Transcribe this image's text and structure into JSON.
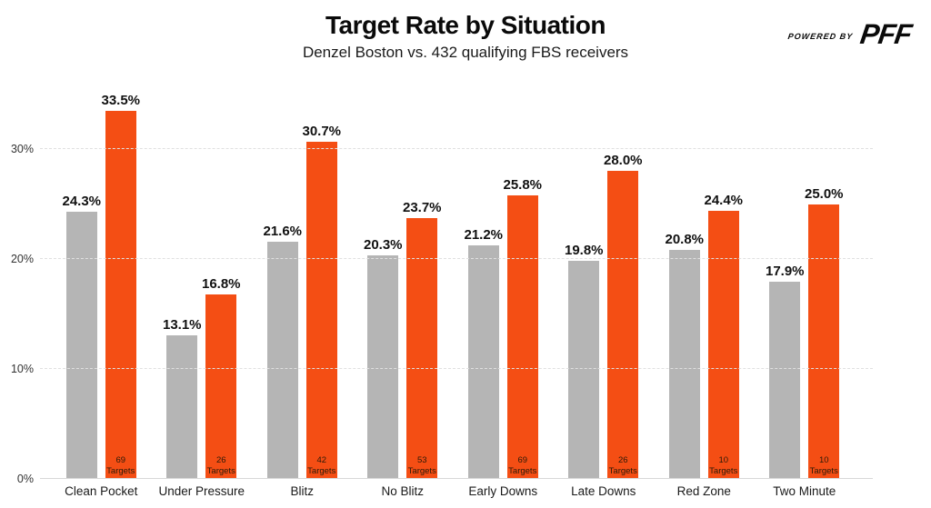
{
  "header": {
    "title": "Target Rate by Situation",
    "subtitle": "Denzel Boston vs. 432 qualifying FBS receivers",
    "powered_by_label": "POWERED BY",
    "brand": "PFF"
  },
  "colors": {
    "orange": "#f44e14",
    "gray": "#b5b5b5",
    "gridline": "#e0e0e0"
  },
  "chart_data": {
    "type": "bar",
    "title": "Target Rate by Situation",
    "subtitle": "Denzel Boston vs. 432 qualifying FBS receivers",
    "categories": [
      "Clean Pocket",
      "Under Pressure",
      "Blitz",
      "No Blitz",
      "Early Downs",
      "Late Downs",
      "Red Zone",
      "Two Minute"
    ],
    "series": [
      {
        "name": "432 qualifying FBS receivers",
        "color": "#b5b5b5",
        "values": [
          24.3,
          13.1,
          21.6,
          20.3,
          21.2,
          19.8,
          20.8,
          17.9
        ]
      },
      {
        "name": "Denzel Boston",
        "color": "#f44e14",
        "values": [
          33.5,
          16.8,
          30.7,
          23.7,
          25.8,
          28.0,
          24.4,
          25.0
        ],
        "targets": [
          69,
          26,
          42,
          53,
          69,
          26,
          10,
          10
        ]
      }
    ],
    "targets_word": "Targets",
    "value_suffix": "%",
    "xlabel": "",
    "ylabel": "",
    "ylim": [
      0,
      35
    ],
    "yticks": [
      0,
      10,
      20,
      30
    ],
    "ytick_labels": [
      "0%",
      "10%",
      "20%",
      "30%"
    ],
    "grid": true,
    "legend": "none",
    "value_labels": true
  }
}
